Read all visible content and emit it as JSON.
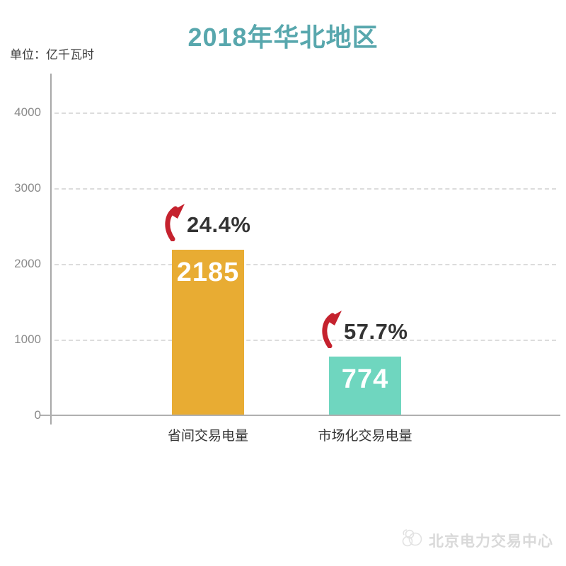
{
  "header": {
    "title": "2018年华北地区",
    "unit_label": "单位：亿千瓦时"
  },
  "watermark": {
    "text": "北京电力交易中心",
    "logo": "cloud-flower-outline"
  },
  "colors": {
    "title": "#58a7ad",
    "arrow_red": "#c5222e",
    "bar_orange": "#e8ac33",
    "bar_teal": "#6fd6bf",
    "axis_line": "#a8a8a8",
    "gridline": "#dcdcdc",
    "tick_text": "#8a8a8a",
    "label_text": "#333333",
    "bar_value_text": "#ffffff",
    "watermark_text": "#d9d9d9"
  },
  "chart_data": {
    "type": "bar",
    "title": "2018年华北地区",
    "subtitle": "",
    "unit": "亿千瓦时",
    "xlabel": "",
    "ylabel": "单位：亿千瓦时",
    "categories": [
      "省间交易电量",
      "市场化交易电量"
    ],
    "series": [
      {
        "name": "交易电量",
        "values": [
          2185,
          774
        ],
        "value_labels": [
          "2185",
          "774"
        ],
        "growth_labels": [
          "24.4%",
          "57.7%"
        ],
        "bar_colors": [
          "#e8ac33",
          "#6fd6bf"
        ]
      }
    ],
    "yticks": [
      0,
      1000,
      2000,
      3000,
      4000
    ],
    "ytick_labels": [
      "0",
      "1000",
      "2000",
      "3000",
      "4000"
    ],
    "ylim": [
      0,
      4500
    ],
    "grid": "horizontal-dashed",
    "legend": "none",
    "annotations": "red curved up-arrows with growth percentages above each bar"
  }
}
